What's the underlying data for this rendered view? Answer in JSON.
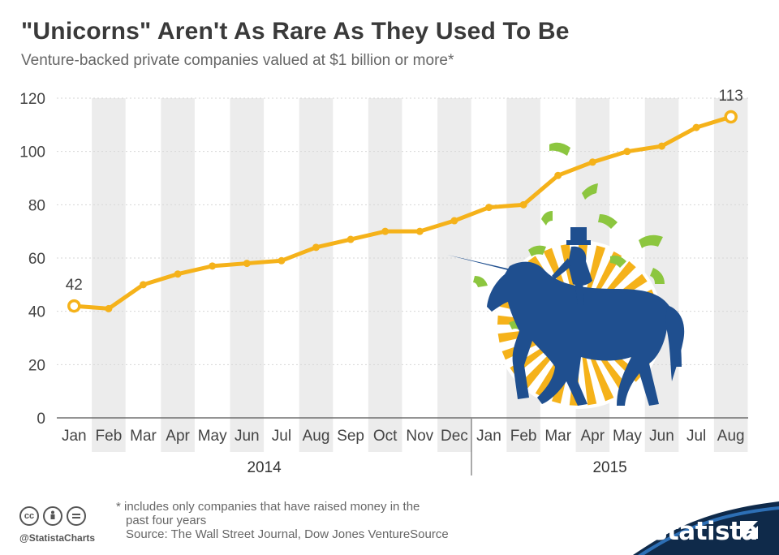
{
  "header": {
    "title": "\"Unicorns\" Aren't As Rare As They Used To Be",
    "subtitle": "Venture-backed private companies valued at $1 billion or more*"
  },
  "chart_data": {
    "type": "line",
    "categories": [
      "Jan",
      "Feb",
      "Mar",
      "Apr",
      "May",
      "Jun",
      "Jul",
      "Aug",
      "Sep",
      "Oct",
      "Nov",
      "Dec",
      "Jan",
      "Feb",
      "Mar",
      "Apr",
      "May",
      "Jun",
      "Jul",
      "Aug"
    ],
    "year_groups": [
      {
        "label": "2014",
        "from": 0,
        "to": 11
      },
      {
        "label": "2015",
        "from": 12,
        "to": 19
      }
    ],
    "values": [
      42,
      41,
      50,
      54,
      57,
      58,
      59,
      64,
      67,
      70,
      70,
      74,
      79,
      80,
      91,
      96,
      100,
      102,
      109,
      113
    ],
    "labeled_points": [
      {
        "index": 0,
        "label": "42"
      },
      {
        "index": 19,
        "label": "113"
      }
    ],
    "ylim": [
      0,
      120
    ],
    "yticks": [
      "0",
      "20",
      "40",
      "60",
      "80",
      "100",
      "120"
    ],
    "grid": true,
    "alternating_column_bands": true,
    "colors": {
      "line": "#f5b21a",
      "band": "#ececec",
      "grid": "#d6d6d6"
    }
  },
  "illustration": {
    "icon": "unicorn-rider-icon",
    "colors": {
      "horse": "#1f4f8f",
      "burst": "#f5b21a",
      "money": "#8cc63f"
    }
  },
  "footer": {
    "note_line1": "* includes only companies that have raised money in the",
    "note_line2": "past four years",
    "source": "Source: The Wall Street Journal, Dow Jones VentureSource",
    "handle": "@StatistaCharts",
    "brand": "statista",
    "license_icons": [
      "cc-icon",
      "attribution-icon",
      "no-derivatives-icon"
    ]
  }
}
